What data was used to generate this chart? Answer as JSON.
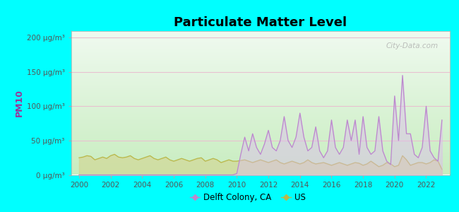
{
  "title": "Particulate Matter Level",
  "ylabel": "PM10",
  "background_outer": "#00FFFF",
  "ylim": [
    0,
    210
  ],
  "yticks": [
    0,
    50,
    100,
    150,
    200
  ],
  "ytick_labels": [
    "0 μg/m³",
    "50 μg/m³",
    "100 μg/m³",
    "150 μg/m³",
    "200 μg/m³"
  ],
  "xlim": [
    1999.5,
    2023.5
  ],
  "xticks": [
    2000,
    2002,
    2004,
    2006,
    2008,
    2010,
    2012,
    2014,
    2016,
    2018,
    2020,
    2022
  ],
  "delft_color": "#bb88cc",
  "us_color": "#b8b84a",
  "delft_fill": "#ddbbee",
  "us_fill": "#d4d490",
  "ylabel_color": "#993399",
  "tick_color": "#555555",
  "grid_color": "#e8c0d0",
  "watermark": "City-Data.com",
  "legend_labels": [
    "Delft Colony, CA",
    "US"
  ],
  "us_data_years": [
    2000.0,
    2000.25,
    2000.5,
    2000.75,
    2001.0,
    2001.25,
    2001.5,
    2001.75,
    2002.0,
    2002.25,
    2002.5,
    2002.75,
    2003.0,
    2003.25,
    2003.5,
    2003.75,
    2004.0,
    2004.25,
    2004.5,
    2004.75,
    2005.0,
    2005.25,
    2005.5,
    2005.75,
    2006.0,
    2006.25,
    2006.5,
    2006.75,
    2007.0,
    2007.25,
    2007.5,
    2007.75,
    2008.0,
    2008.25,
    2008.5,
    2008.75,
    2009.0,
    2009.25,
    2009.5,
    2009.75,
    2010.0,
    2010.25,
    2010.5,
    2010.75,
    2011.0,
    2011.25,
    2011.5,
    2011.75,
    2012.0,
    2012.25,
    2012.5,
    2012.75,
    2013.0,
    2013.25,
    2013.5,
    2013.75,
    2014.0,
    2014.25,
    2014.5,
    2014.75,
    2015.0,
    2015.25,
    2015.5,
    2015.75,
    2016.0,
    2016.25,
    2016.5,
    2016.75,
    2017.0,
    2017.25,
    2017.5,
    2017.75,
    2018.0,
    2018.25,
    2018.5,
    2018.75,
    2019.0,
    2019.25,
    2019.5,
    2019.75,
    2020.0,
    2020.25,
    2020.5,
    2020.75,
    2021.0,
    2021.25,
    2021.5,
    2021.75,
    2022.0,
    2022.25,
    2022.5,
    2022.75,
    2023.0
  ],
  "us_data_vals": [
    25,
    26,
    28,
    27,
    22,
    24,
    26,
    24,
    28,
    30,
    26,
    25,
    26,
    28,
    24,
    22,
    24,
    26,
    28,
    24,
    22,
    24,
    26,
    22,
    20,
    22,
    24,
    22,
    20,
    22,
    24,
    25,
    20,
    22,
    24,
    22,
    18,
    20,
    22,
    20,
    20,
    21,
    22,
    20,
    18,
    20,
    22,
    20,
    18,
    20,
    22,
    18,
    16,
    18,
    20,
    18,
    16,
    18,
    22,
    18,
    16,
    17,
    18,
    16,
    14,
    16,
    18,
    16,
    14,
    16,
    18,
    17,
    14,
    16,
    20,
    16,
    12,
    14,
    18,
    16,
    12,
    14,
    28,
    22,
    14,
    16,
    18,
    18,
    16,
    18,
    22,
    20,
    8
  ],
  "delft_data_years": [
    2000.0,
    2001.0,
    2002.0,
    2003.0,
    2004.0,
    2005.0,
    2006.0,
    2007.0,
    2008.0,
    2009.0,
    2009.75,
    2010.0,
    2010.25,
    2010.5,
    2010.75,
    2011.0,
    2011.25,
    2011.5,
    2011.75,
    2012.0,
    2012.25,
    2012.5,
    2012.75,
    2013.0,
    2013.25,
    2013.5,
    2013.75,
    2014.0,
    2014.25,
    2014.5,
    2014.75,
    2015.0,
    2015.25,
    2015.5,
    2015.75,
    2016.0,
    2016.25,
    2016.5,
    2016.75,
    2017.0,
    2017.25,
    2017.5,
    2017.75,
    2018.0,
    2018.25,
    2018.5,
    2018.75,
    2019.0,
    2019.25,
    2019.5,
    2019.75,
    2020.0,
    2020.25,
    2020.5,
    2020.75,
    2021.0,
    2021.25,
    2021.5,
    2021.75,
    2022.0,
    2022.25,
    2022.5,
    2022.75,
    2023.0
  ],
  "delft_data_vals": [
    0,
    0,
    0,
    0,
    0,
    0,
    0,
    0,
    0,
    0,
    0,
    2,
    30,
    55,
    35,
    60,
    40,
    30,
    45,
    65,
    40,
    35,
    50,
    85,
    50,
    40,
    55,
    90,
    55,
    35,
    40,
    70,
    35,
    25,
    35,
    80,
    40,
    30,
    40,
    80,
    50,
    80,
    30,
    85,
    40,
    30,
    35,
    85,
    35,
    20,
    15,
    115,
    50,
    145,
    60,
    60,
    30,
    25,
    40,
    100,
    35,
    25,
    20,
    80
  ]
}
